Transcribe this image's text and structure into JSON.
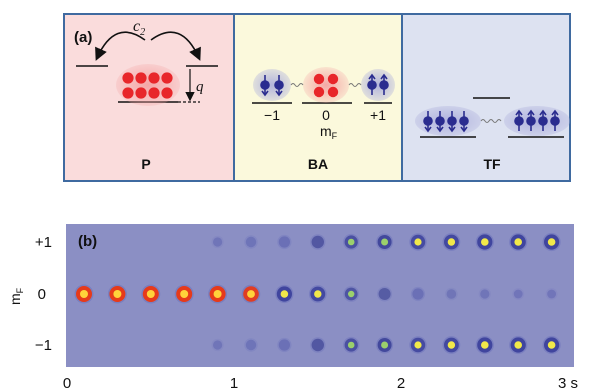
{
  "panel_a": {
    "label": "(a)",
    "coupling_label": "c",
    "coupling_subscript": "2",
    "energy_label": "q",
    "phases": [
      {
        "name": "P",
        "bg": "#fadcdc"
      },
      {
        "name": "BA",
        "bg": "#fbf9dc"
      },
      {
        "name": "TF",
        "bg": "#dde2f1"
      }
    ],
    "mf_values": [
      "−1",
      "0",
      "+1"
    ],
    "mf_label": "m",
    "mf_subscript": "F",
    "colors": {
      "border": "#3f6aa0",
      "red_atom": "#e8262a",
      "blue_atom": "#2a2c8f",
      "halo": "#b5b3de"
    }
  },
  "panel_b": {
    "label": "(b)",
    "y_label": "m",
    "y_label_subscript": "F",
    "row_labels": [
      "+1",
      "0",
      "−1"
    ],
    "x_ticks": [
      "0",
      "1",
      "2",
      "3 s"
    ],
    "background": "#8b8fc4",
    "columns": 15,
    "row_intensities": {
      "plus1": [
        0,
        0,
        0,
        0,
        0.15,
        0.3,
        0.4,
        0.55,
        0.65,
        0.75,
        0.8,
        0.85,
        0.9,
        0.9,
        0.9
      ],
      "zero": [
        1,
        1,
        1,
        1,
        1,
        0.95,
        0.9,
        0.85,
        0.6,
        0.5,
        0.4,
        0.2,
        0.15,
        0.1,
        0.1
      ],
      "minus1": [
        0,
        0,
        0,
        0,
        0.15,
        0.3,
        0.4,
        0.55,
        0.65,
        0.75,
        0.8,
        0.85,
        0.9,
        0.9,
        0.9
      ]
    }
  }
}
